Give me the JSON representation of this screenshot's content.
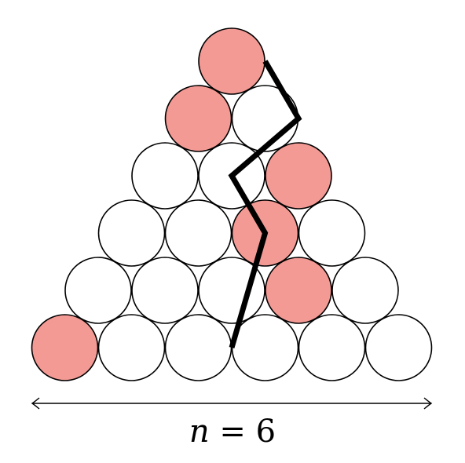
{
  "diagram": {
    "label": {
      "variable": "n",
      "equals": "=",
      "value": "6"
    },
    "triangle": {
      "rows": 6,
      "highlighted": [
        [
          0,
          0
        ],
        [
          1,
          0
        ],
        [
          2,
          2
        ],
        [
          3,
          2
        ],
        [
          4,
          3
        ],
        [
          5,
          0
        ]
      ]
    },
    "path": [
      [
        0,
        0.5
      ],
      [
        1,
        1.5
      ],
      [
        2,
        1
      ],
      [
        3,
        2
      ],
      [
        5,
        2.5
      ]
    ],
    "colors": {
      "highlight": "#F49A95",
      "empty": "#FFFFFF",
      "stroke": "#000000"
    }
  }
}
